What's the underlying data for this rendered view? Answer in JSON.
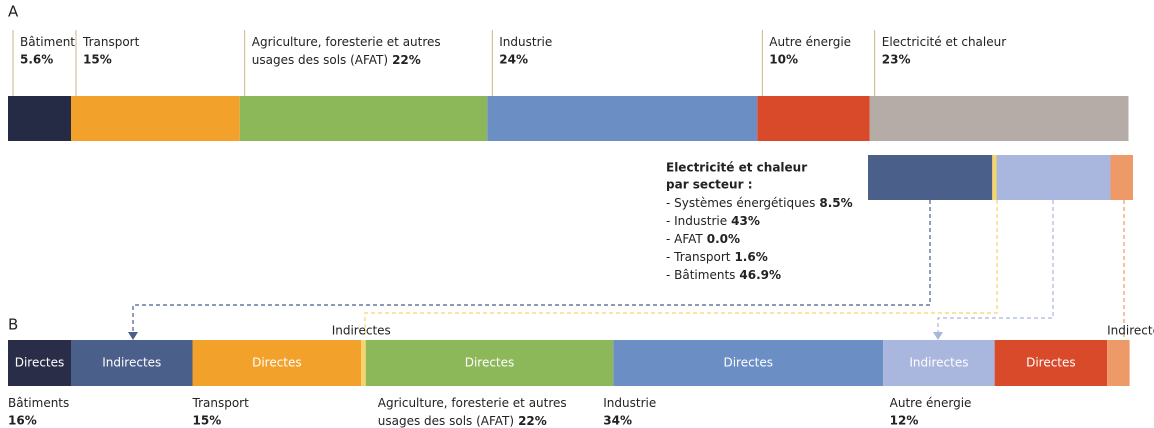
{
  "chart_data": [
    {
      "type": "stacked-bar",
      "panel": "A",
      "categories": [
        [
          "Bâtiment"
        ],
        [
          "Transport"
        ],
        [
          "Agriculture, foresterie et autres",
          "usages des sols (AFAT)"
        ],
        [
          "Industrie"
        ],
        [
          "Autre énergie"
        ],
        [
          "Electricité et chaleur"
        ]
      ],
      "values": [
        5.6,
        15,
        22,
        24,
        10,
        23
      ],
      "value_labels": [
        "5.6%",
        "15%",
        "22%",
        "24%",
        "10%",
        "23%"
      ],
      "colors": [
        "#262b45",
        "#f2a12a",
        "#8db85a",
        "#6b8ec4",
        "#d94a2a",
        "#b5aca8"
      ]
    },
    {
      "type": "breakdown-bar",
      "title": [
        "Electricité et chaleur",
        "par secteur :"
      ],
      "categories": [
        "- Systèmes énergétiques",
        "- Industrie",
        "- AFAT",
        "- Transport",
        "- Bâtiments"
      ],
      "values": [
        8.5,
        43,
        0.0,
        1.6,
        46.9
      ],
      "value_labels": [
        "8.5%",
        "43%",
        "0.0%",
        "1.6%",
        "46.9%"
      ],
      "colors": [
        "#ee9a68",
        "#a9b6dd",
        "#8db85a",
        "#f7d36b",
        "#4b5f8b"
      ]
    },
    {
      "type": "grouped-stacked-bar",
      "panel": "B",
      "groups": [
        {
          "name": [
            "Bâtiments"
          ],
          "value": 16,
          "value_label": "16%",
          "segments": [
            {
              "name": "Directes",
              "value": 5.6,
              "color": "#2a2d48"
            },
            {
              "name": "Indirectes",
              "value": 10.8,
              "color": "#4b5f8b"
            }
          ]
        },
        {
          "name": [
            "Transport"
          ],
          "value": 15,
          "value_label": "15%",
          "segments": [
            {
              "name": "Directes",
              "value": 15,
              "color": "#f2a12a"
            },
            {
              "name": "Indirectes",
              "value": 0.4,
              "color": "#f7d36b"
            }
          ]
        },
        {
          "name": [
            "Agriculture, foresterie et autres",
            "usages des sols (AFAT)"
          ],
          "value": 22,
          "value_label": "22%",
          "segments": [
            {
              "name": "Directes",
              "value": 22,
              "color": "#8db85a"
            }
          ]
        },
        {
          "name": [
            "Industrie"
          ],
          "value": 34,
          "value_label": "34%",
          "segments": [
            {
              "name": "Directes",
              "value": 24,
              "color": "#6b8ec4"
            },
            {
              "name": "Indirectes",
              "value": 9.9,
              "color": "#a9b6dd"
            }
          ]
        },
        {
          "name": [
            "Autre énergie"
          ],
          "value": 12,
          "value_label": "12%",
          "segments": [
            {
              "name": "Directes",
              "value": 10,
              "color": "#d94a2a"
            },
            {
              "name": "Indirectes",
              "value": 2.0,
              "color": "#ee9a68"
            }
          ]
        }
      ]
    }
  ]
}
